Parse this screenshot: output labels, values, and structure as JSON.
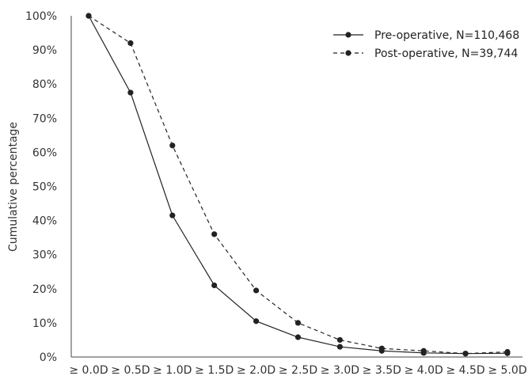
{
  "chart_data": {
    "type": "line",
    "title": "",
    "xlabel": "",
    "ylabel": "Cumulative percentage",
    "categories": [
      "≥ 0.0D",
      "≥ 0.5D",
      "≥ 1.0D",
      "≥ 1.5D",
      "≥ 2.0D",
      "≥ 2.5D",
      "≥ 3.0D",
      "≥ 3.5D",
      "≥ 4.0D",
      "≥ 4.5D",
      "≥ 5.0D"
    ],
    "ylim": [
      0,
      100
    ],
    "yticks": [
      "0%",
      "10%",
      "20%",
      "30%",
      "40%",
      "50%",
      "60%",
      "70%",
      "80%",
      "90%",
      "100%"
    ],
    "grid": false,
    "legend_position": "top-right",
    "series": [
      {
        "name": "Pre-operative, N=110,468",
        "line_style": "solid",
        "color": "#222222",
        "values": [
          100,
          77.5,
          41.5,
          21,
          10.5,
          5.8,
          3,
          1.8,
          1.2,
          1.0,
          1.1
        ]
      },
      {
        "name": "Post-operative, N=39,744",
        "line_style": "dashed",
        "color": "#222222",
        "values": [
          100,
          92,
          62,
          36,
          19.5,
          10,
          5,
          2.5,
          1.8,
          1.0,
          1.5
        ]
      }
    ]
  }
}
